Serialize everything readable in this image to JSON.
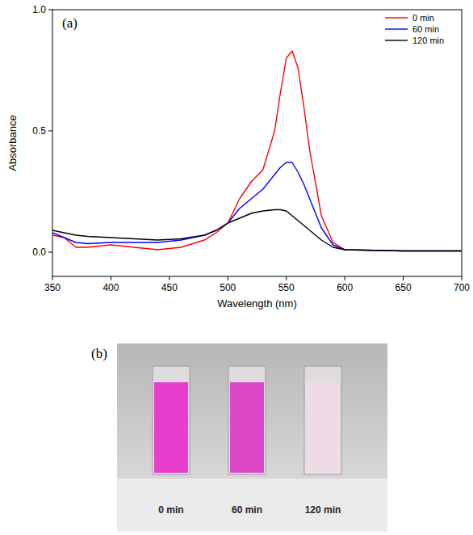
{
  "chart_data": {
    "type": "line",
    "title": "(a)",
    "x_label": "Wavelength (nm)",
    "y_label": "Absorbance",
    "x": [
      350,
      360,
      370,
      380,
      400,
      420,
      440,
      460,
      480,
      490,
      500,
      510,
      520,
      530,
      540,
      545,
      550,
      555,
      560,
      565,
      570,
      580,
      590,
      600,
      650,
      700
    ],
    "series": [
      {
        "name": "0 min",
        "color": "#ff0000",
        "values": [
          0.07,
          0.06,
          0.02,
          0.02,
          0.03,
          0.02,
          0.01,
          0.02,
          0.05,
          0.08,
          0.12,
          0.22,
          0.29,
          0.34,
          0.5,
          0.66,
          0.8,
          0.83,
          0.76,
          0.6,
          0.42,
          0.15,
          0.04,
          0.01,
          0.005,
          0.005
        ]
      },
      {
        "name": "60 min",
        "color": "#0000ff",
        "values": [
          0.08,
          0.06,
          0.04,
          0.035,
          0.04,
          0.04,
          0.04,
          0.05,
          0.07,
          0.09,
          0.12,
          0.18,
          0.22,
          0.26,
          0.32,
          0.35,
          0.37,
          0.37,
          0.33,
          0.28,
          0.22,
          0.1,
          0.03,
          0.01,
          0.005,
          0.005
        ]
      },
      {
        "name": "120 min",
        "color": "#000000",
        "values": [
          0.09,
          0.08,
          0.07,
          0.065,
          0.06,
          0.055,
          0.05,
          0.055,
          0.07,
          0.09,
          0.12,
          0.14,
          0.16,
          0.17,
          0.175,
          0.175,
          0.17,
          0.15,
          0.13,
          0.11,
          0.09,
          0.05,
          0.02,
          0.01,
          0.005,
          0.005
        ]
      }
    ],
    "xlim": [
      350,
      700
    ],
    "xticks": [
      350,
      400,
      450,
      500,
      550,
      600,
      650,
      700
    ],
    "ylim": [
      -0.1,
      1.0
    ],
    "yticks": [
      {
        "value": 0,
        "label": "0.0"
      },
      {
        "value": 0.5,
        "label": "0.5"
      },
      {
        "value": 1.0,
        "label": "1.0"
      }
    ],
    "legend": "top-right",
    "grid": false
  },
  "photo": {
    "label": "(b)",
    "samples": [
      {
        "label": "0 min",
        "color": "#e53fcb"
      },
      {
        "label": "60 min",
        "color": "#dc48c6"
      },
      {
        "label": "120 min",
        "color": "#efdbe6"
      }
    ]
  }
}
